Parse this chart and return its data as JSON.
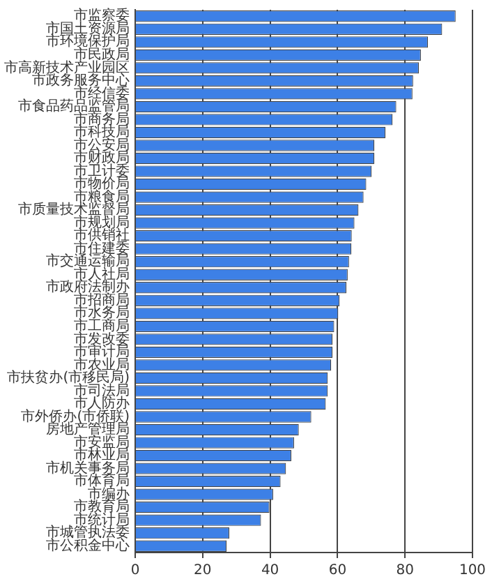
{
  "chart_data": {
    "type": "bar",
    "orientation": "horizontal",
    "categories": [
      "市监察委",
      "市国土资源局",
      "市环境保护局",
      "市民政局",
      "市高新技术产业园区",
      "市政务服务中心",
      "市经信委",
      "市食品药品监管局",
      "市商务局",
      "市科技局",
      "市公安局",
      "市财政局",
      "市卫计委",
      "市物价局",
      "市粮食局",
      "市质量技术监督局",
      "市规划局",
      "市供销社",
      "市住建委",
      "市交通运输局",
      "市人社局",
      "市政府法制办",
      "市招商局",
      "市水务局",
      "市工商局",
      "市发改委",
      "市审计局",
      "市农业局",
      "市扶贫办(市移民局)",
      "市司法局",
      "市人防办",
      "市外侨办(市侨联)",
      "房地产管理局",
      "市安监局",
      "市林业局",
      "市机关事务局",
      "市体育局",
      "市编办",
      "市教育局",
      "市统计局",
      "市城管执法委",
      "市公积金中心"
    ],
    "values": [
      95.0,
      91.0,
      86.8,
      84.7,
      84.1,
      82.4,
      82.2,
      77.4,
      76.3,
      74.2,
      70.9,
      70.9,
      70.1,
      68.5,
      67.7,
      66.2,
      65.0,
      64.2,
      64.1,
      63.4,
      63.0,
      62.6,
      60.6,
      60.2,
      59.0,
      58.5,
      58.5,
      58.1,
      57.1,
      57.1,
      56.5,
      52.2,
      48.5,
      47.1,
      46.3,
      44.7,
      43.1,
      40.9,
      39.8,
      37.3,
      27.9,
      27.1
    ],
    "color": "#3d80e6",
    "xlim": [
      0,
      100
    ],
    "xticks": [
      0,
      20,
      40,
      60,
      80,
      100
    ],
    "grid": "x",
    "legend": false
  }
}
